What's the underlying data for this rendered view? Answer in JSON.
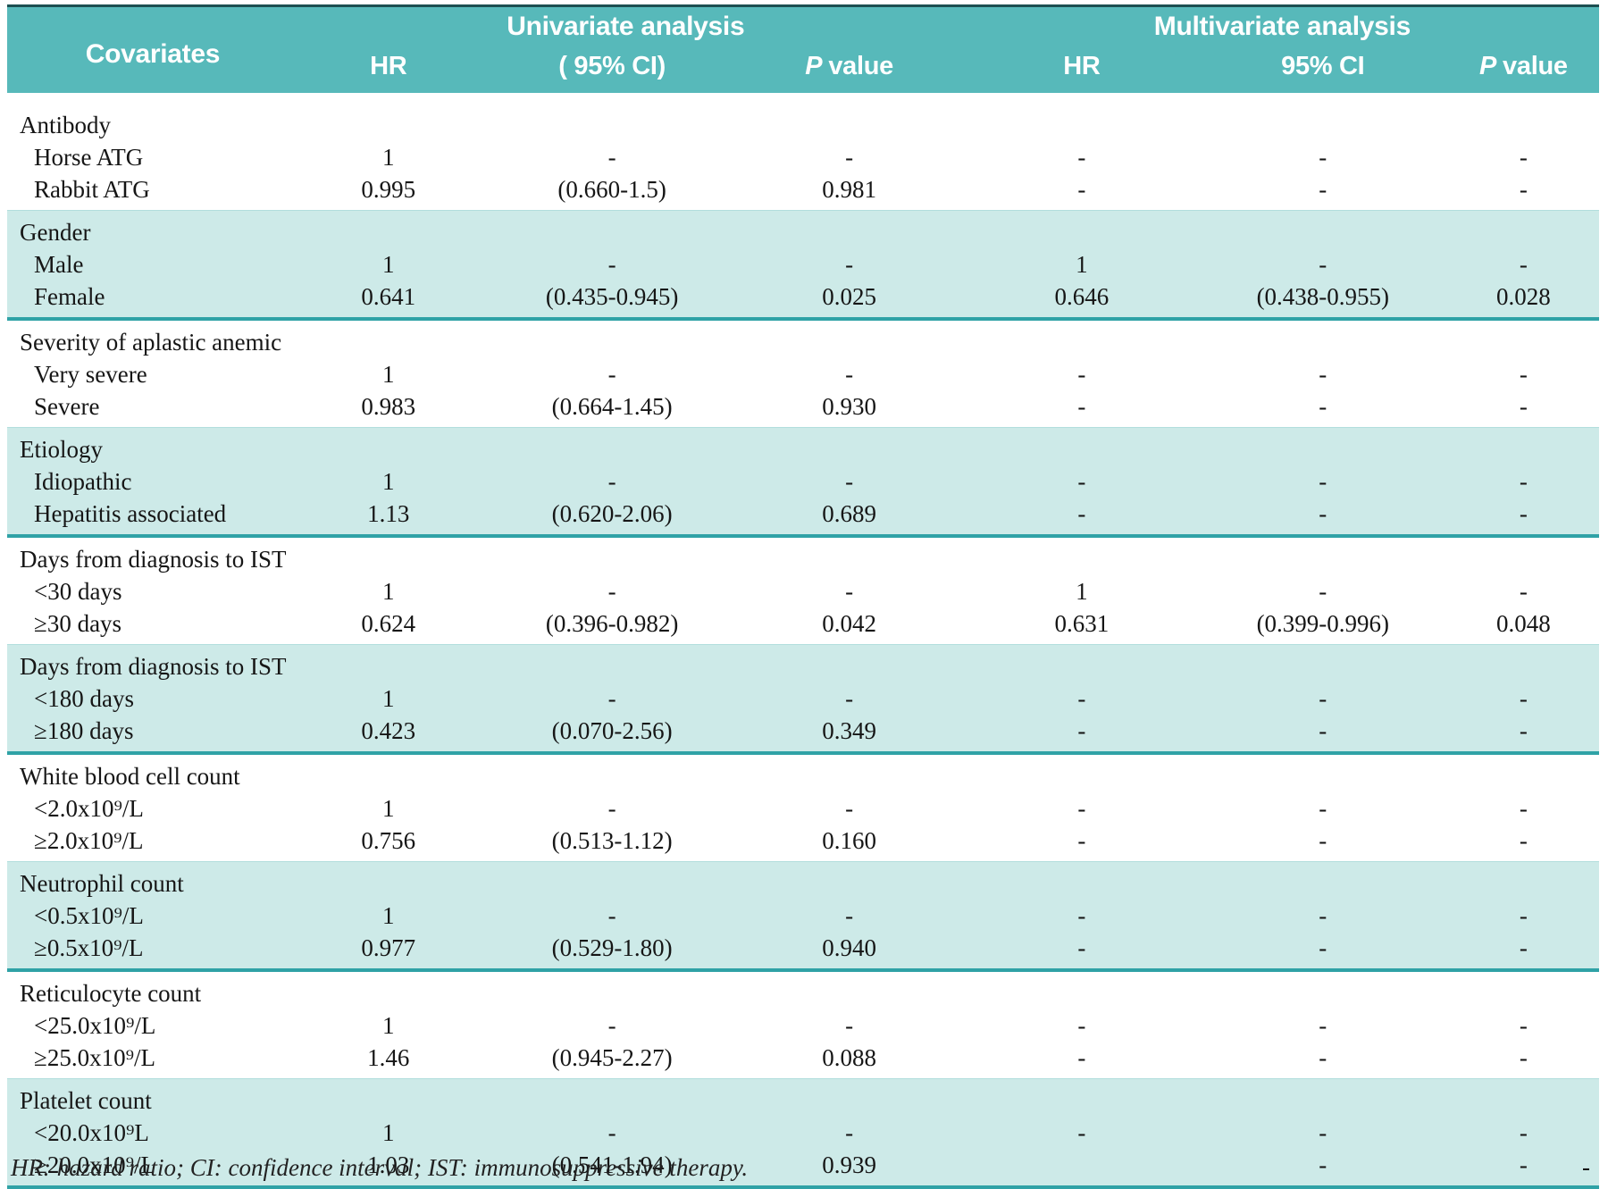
{
  "colors": {
    "header_bg": "#57b9ba",
    "band_bg": "#cdeae8",
    "divider_line": "#2fa2a6",
    "top_rule": "#1c4f51",
    "header_text": "#ffffff",
    "body_text": "#161616"
  },
  "table": {
    "header": {
      "covariates": "Covariates",
      "univariate": "Univariate analysis",
      "multivariate": "Multivariate analysis",
      "sub": {
        "uni_hr": "HR",
        "uni_ci": "( 95% CI)",
        "uni_p_italic": "P",
        "uni_p_rest": "value",
        "multi_hr": "HR",
        "multi_ci": "95% CI",
        "multi_p_italic": "P",
        "multi_p_rest": "value"
      }
    },
    "groups": [
      {
        "title": "Antibody",
        "shade": "white",
        "rows": [
          {
            "label": "Horse ATG",
            "uni": [
              "1",
              "-",
              "-"
            ],
            "multi": [
              "-",
              "-",
              "-"
            ]
          },
          {
            "label": "Rabbit ATG",
            "uni": [
              "0.995",
              "(0.660-1.5)",
              "0.981"
            ],
            "multi": [
              "-",
              "-",
              "-"
            ]
          }
        ]
      },
      {
        "title": "Gender",
        "shade": "teal",
        "rows": [
          {
            "label": "Male",
            "uni": [
              "1",
              "-",
              "-"
            ],
            "multi": [
              "1",
              "-",
              "-"
            ]
          },
          {
            "label": "Female",
            "uni": [
              "0.641",
              "(0.435-0.945)",
              "0.025"
            ],
            "multi": [
              "0.646",
              "(0.438-0.955)",
              "0.028"
            ]
          }
        ]
      },
      {
        "title": "Severity of aplastic anemic",
        "shade": "white",
        "rows": [
          {
            "label": "Very severe",
            "uni": [
              "1",
              "-",
              "-"
            ],
            "multi": [
              "-",
              "-",
              "-"
            ]
          },
          {
            "label": "Severe",
            "uni": [
              "0.983",
              "(0.664-1.45)",
              "0.930"
            ],
            "multi": [
              "-",
              "-",
              "-"
            ]
          }
        ]
      },
      {
        "title": "Etiology",
        "shade": "teal",
        "rows": [
          {
            "label": "Idiopathic",
            "uni": [
              "1",
              "-",
              "-"
            ],
            "multi": [
              "-",
              "-",
              "-"
            ]
          },
          {
            "label": "Hepatitis associated",
            "uni": [
              "1.13",
              "(0.620-2.06)",
              "0.689"
            ],
            "multi": [
              "-",
              "-",
              "-"
            ]
          }
        ]
      },
      {
        "title": "Days from diagnosis to IST",
        "shade": "white",
        "rows": [
          {
            "label": "<30 days",
            "uni": [
              "1",
              "-",
              "-"
            ],
            "multi": [
              "1",
              "-",
              "-"
            ]
          },
          {
            "label": "≥30 days",
            "uni": [
              "0.624",
              "(0.396-0.982)",
              "0.042"
            ],
            "multi": [
              "0.631",
              "(0.399-0.996)",
              "0.048"
            ]
          }
        ]
      },
      {
        "title": "Days from diagnosis to IST",
        "shade": "teal",
        "rows": [
          {
            "label": "<180 days",
            "uni": [
              "1",
              "-",
              "-"
            ],
            "multi": [
              "-",
              "-",
              "-"
            ]
          },
          {
            "label": "≥180 days",
            "uni": [
              "0.423",
              "(0.070-2.56)",
              "0.349"
            ],
            "multi": [
              "-",
              "-",
              "-"
            ]
          }
        ]
      },
      {
        "title": "White blood cell count",
        "shade": "white",
        "rows": [
          {
            "label": "<2.0x10⁹/L",
            "uni": [
              "1",
              "-",
              "-"
            ],
            "multi": [
              "-",
              "-",
              "-"
            ]
          },
          {
            "label": "≥2.0x10⁹/L",
            "uni": [
              "0.756",
              "(0.513-1.12)",
              "0.160"
            ],
            "multi": [
              "-",
              "-",
              "-"
            ]
          }
        ]
      },
      {
        "title": "Neutrophil count",
        "shade": "teal",
        "rows": [
          {
            "label": "<0.5x10⁹/L",
            "uni": [
              "1",
              "-",
              "-"
            ],
            "multi": [
              "-",
              "-",
              "-"
            ]
          },
          {
            "label": "≥0.5x10⁹/L",
            "uni": [
              "0.977",
              "(0.529-1.80)",
              "0.940"
            ],
            "multi": [
              "-",
              "-",
              "-"
            ]
          }
        ]
      },
      {
        "title": "Reticulocyte count",
        "shade": "white",
        "rows": [
          {
            "label": "<25.0x10⁹/L",
            "uni": [
              "1",
              "-",
              "-"
            ],
            "multi": [
              "-",
              "-",
              "-"
            ]
          },
          {
            "label": "≥25.0x10⁹/L",
            "uni": [
              "1.46",
              "(0.945-2.27)",
              "0.088"
            ],
            "multi": [
              "-",
              "-",
              "-"
            ]
          }
        ]
      },
      {
        "title": "Platelet count",
        "shade": "teal",
        "rows": [
          {
            "label": "<20.0x10⁹L",
            "uni": [
              "1",
              "-",
              "-"
            ],
            "multi": [
              "-",
              "-",
              "-"
            ]
          },
          {
            "label": "≥20.0x10⁹/L",
            "uni": [
              "1.03",
              "(0.541-1.94)",
              "0.939"
            ],
            "multi": [
              "",
              "-",
              "-"
            ],
            "extra": "-"
          }
        ]
      }
    ]
  },
  "footnote": "HR: hazard ratio; CI: confidence interval; IST: immunosuppressive therapy."
}
